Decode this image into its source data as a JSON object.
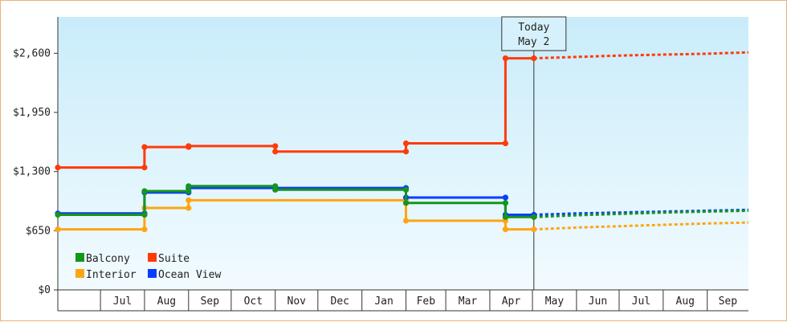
{
  "chart_data": {
    "type": "line",
    "title": "",
    "xlabel": "",
    "ylabel": "",
    "ylim": [
      0,
      3000
    ],
    "y_ticks": [
      {
        "value": 0,
        "label": "$0"
      },
      {
        "value": 650,
        "label": "$650"
      },
      {
        "value": 1300,
        "label": "$1,300"
      },
      {
        "value": 1950,
        "label": "$1,950"
      },
      {
        "value": 2600,
        "label": "$2,600"
      }
    ],
    "x_start": "2025-06-01",
    "x_end": "2026-09-30",
    "month_labels": [
      {
        "date": "2025-06-01",
        "label": ""
      },
      {
        "date": "2025-07-01",
        "label": "Jul"
      },
      {
        "date": "2025-08-01",
        "label": "Aug"
      },
      {
        "date": "2025-09-01",
        "label": "Sep"
      },
      {
        "date": "2025-10-01",
        "label": "Oct"
      },
      {
        "date": "2025-11-01",
        "label": "Nov"
      },
      {
        "date": "2025-12-01",
        "label": "Dec"
      },
      {
        "date": "2026-01-01",
        "label": "Jan"
      },
      {
        "date": "2026-02-01",
        "label": "Feb"
      },
      {
        "date": "2026-03-01",
        "label": "Mar"
      },
      {
        "date": "2026-04-01",
        "label": "Apr"
      },
      {
        "date": "2026-05-01",
        "label": "May"
      },
      {
        "date": "2026-06-01",
        "label": "Jun"
      },
      {
        "date": "2026-07-01",
        "label": "Jul"
      },
      {
        "date": "2026-08-01",
        "label": "Aug"
      },
      {
        "date": "2026-09-01",
        "label": "Sep"
      }
    ],
    "today": {
      "date": "2026-05-02",
      "line1": "Today",
      "line2": "May 2"
    },
    "legend": "bottom-left",
    "grid": false,
    "background_gradient": [
      "#c9ecfa",
      "#f2fbff"
    ],
    "series": [
      {
        "name": "Balcony",
        "color": "#14961e",
        "points": [
          {
            "date": "2025-06-01",
            "value": 825
          },
          {
            "date": "2025-08-01",
            "value": 825
          },
          {
            "date": "2025-08-01",
            "value": 1085
          },
          {
            "date": "2025-09-01",
            "value": 1085
          },
          {
            "date": "2025-09-01",
            "value": 1140
          },
          {
            "date": "2025-11-01",
            "value": 1140
          },
          {
            "date": "2025-11-01",
            "value": 1100
          },
          {
            "date": "2026-02-01",
            "value": 1100
          },
          {
            "date": "2026-02-01",
            "value": 955
          },
          {
            "date": "2026-04-12",
            "value": 955
          },
          {
            "date": "2026-04-12",
            "value": 800
          },
          {
            "date": "2026-05-02",
            "value": 800
          }
        ],
        "forecast": [
          {
            "date": "2026-05-02",
            "value": 800
          },
          {
            "date": "2026-06-01",
            "value": 820
          },
          {
            "date": "2026-07-01",
            "value": 835
          },
          {
            "date": "2026-08-01",
            "value": 850
          },
          {
            "date": "2026-09-01",
            "value": 860
          },
          {
            "date": "2026-09-30",
            "value": 870
          }
        ]
      },
      {
        "name": "Suite",
        "color": "#ff3b0a",
        "points": [
          {
            "date": "2025-06-01",
            "value": 1345
          },
          {
            "date": "2025-08-01",
            "value": 1345
          },
          {
            "date": "2025-08-01",
            "value": 1570
          },
          {
            "date": "2025-09-01",
            "value": 1570
          },
          {
            "date": "2025-09-01",
            "value": 1580
          },
          {
            "date": "2025-11-01",
            "value": 1580
          },
          {
            "date": "2025-11-01",
            "value": 1520
          },
          {
            "date": "2026-02-01",
            "value": 1520
          },
          {
            "date": "2026-02-01",
            "value": 1610
          },
          {
            "date": "2026-04-12",
            "value": 1610
          },
          {
            "date": "2026-04-12",
            "value": 2545
          },
          {
            "date": "2026-05-02",
            "value": 2545
          }
        ],
        "forecast": [
          {
            "date": "2026-05-02",
            "value": 2545
          },
          {
            "date": "2026-06-01",
            "value": 2560
          },
          {
            "date": "2026-07-01",
            "value": 2575
          },
          {
            "date": "2026-08-01",
            "value": 2585
          },
          {
            "date": "2026-09-01",
            "value": 2595
          },
          {
            "date": "2026-09-30",
            "value": 2610
          }
        ]
      },
      {
        "name": "Interior",
        "color": "#ffa514",
        "points": [
          {
            "date": "2025-06-01",
            "value": 665
          },
          {
            "date": "2025-08-01",
            "value": 665
          },
          {
            "date": "2025-08-01",
            "value": 900
          },
          {
            "date": "2025-09-01",
            "value": 900
          },
          {
            "date": "2025-09-01",
            "value": 985
          },
          {
            "date": "2026-02-01",
            "value": 985
          },
          {
            "date": "2026-02-01",
            "value": 760
          },
          {
            "date": "2026-04-12",
            "value": 760
          },
          {
            "date": "2026-04-12",
            "value": 665
          },
          {
            "date": "2026-05-02",
            "value": 665
          }
        ],
        "forecast": [
          {
            "date": "2026-05-02",
            "value": 665
          },
          {
            "date": "2026-06-01",
            "value": 685
          },
          {
            "date": "2026-07-01",
            "value": 700
          },
          {
            "date": "2026-08-01",
            "value": 715
          },
          {
            "date": "2026-09-01",
            "value": 730
          },
          {
            "date": "2026-09-30",
            "value": 740
          }
        ]
      },
      {
        "name": "Ocean View",
        "color": "#0a3cff",
        "points": [
          {
            "date": "2025-06-01",
            "value": 840
          },
          {
            "date": "2025-08-01",
            "value": 840
          },
          {
            "date": "2025-08-01",
            "value": 1070
          },
          {
            "date": "2025-09-01",
            "value": 1070
          },
          {
            "date": "2025-09-01",
            "value": 1120
          },
          {
            "date": "2026-02-01",
            "value": 1120
          },
          {
            "date": "2026-02-01",
            "value": 1015
          },
          {
            "date": "2026-04-12",
            "value": 1015
          },
          {
            "date": "2026-04-12",
            "value": 825
          },
          {
            "date": "2026-05-02",
            "value": 825
          }
        ],
        "forecast": [
          {
            "date": "2026-05-02",
            "value": 825
          },
          {
            "date": "2026-06-01",
            "value": 840
          },
          {
            "date": "2026-07-01",
            "value": 850
          },
          {
            "date": "2026-08-01",
            "value": 860
          },
          {
            "date": "2026-09-01",
            "value": 870
          },
          {
            "date": "2026-09-30",
            "value": 880
          }
        ]
      }
    ]
  }
}
